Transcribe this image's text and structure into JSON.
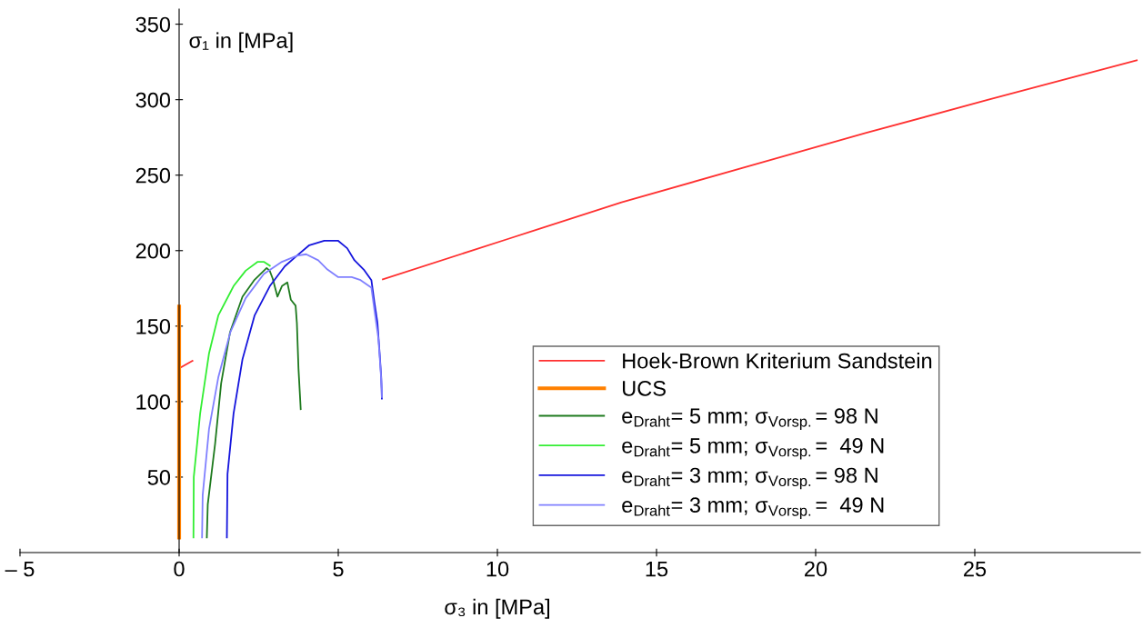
{
  "chart_data": {
    "type": "line",
    "xlabel": "σ₃ in [MPa]",
    "ylabel": "σ₁ in [MPa]",
    "xlim": [
      -5,
      30.2
    ],
    "ylim": [
      0,
      360
    ],
    "xticks": [
      {
        "value": -5,
        "label": "– 5"
      },
      0,
      5,
      10,
      15,
      20,
      25
    ],
    "yticks": [
      50,
      100,
      150,
      200,
      250,
      300,
      350
    ],
    "grid": false,
    "legend": "bottom right",
    "marker": "none",
    "line_style": "solid",
    "series": [
      {
        "name": "Hoek-Brown Kriterium Sandstein",
        "color": "#ff3030",
        "x": [
          0,
          0.42,
          3.0,
          6.4,
          10.37,
          13.9,
          17.74,
          21.59,
          25.43,
          30.09
        ],
        "values": [
          122,
          127,
          null,
          181,
          208,
          232,
          255,
          278,
          300,
          326
        ]
      },
      {
        "name": "UCS",
        "color": "#ff8000",
        "x": [
          0,
          0
        ],
        "values": [
          10,
          163
        ]
      },
      {
        "name": "e$_{Draht}$= 5 mm; σ$_{Vorsp.}$= 98 N",
        "color": "#1e7a1e",
        "x": [
          0.87,
          0.9,
          1.13,
          1.32,
          1.6,
          1.99,
          2.37,
          2.75,
          2.85,
          2.94,
          3.09,
          3.23,
          3.4,
          3.51,
          3.66,
          3.7,
          3.75,
          3.82
        ],
        "values": [
          10,
          32,
          72,
          112,
          146,
          169.5,
          180.7,
          188.5,
          186.5,
          181.5,
          169.5,
          176.5,
          179,
          167.5,
          163.5,
          152,
          122,
          95
        ]
      },
      {
        "name": "e$_{Draht}$= 5 mm; σ$_{Vorsp.}$=  49 N",
        "color": "#33ee33",
        "x": [
          0.45,
          0.46,
          0.66,
          0.94,
          1.23,
          1.71,
          2.09,
          2.47,
          2.66,
          2.85
        ],
        "values": [
          10,
          50,
          92,
          132,
          157,
          176.5,
          186.7,
          192.6,
          192.6,
          190
        ]
      },
      {
        "name": "e$_{Draht}$= 3 mm; σ$_{Vorsp.}$= 98 N",
        "color": "#1515dd",
        "x": [
          1.5,
          1.52,
          1.71,
          1.99,
          2.37,
          2.85,
          3.32,
          3.7,
          4.09,
          4.56,
          4.99,
          5.28,
          5.51,
          5.8,
          6.04,
          6.13,
          6.23,
          6.3,
          6.35,
          6.37
        ],
        "values": [
          10,
          52,
          92,
          128,
          157,
          176.5,
          189.6,
          196.6,
          203.6,
          206.6,
          206.6,
          201.6,
          193.6,
          187.5,
          180.5,
          166.5,
          152.4,
          132,
          116,
          102
        ]
      },
      {
        "name": "e$_{Draht}$= 3 mm; σ$_{Vorsp.}$=  49 N",
        "color": "#8080ff",
        "x": [
          0.72,
          0.74,
          0.94,
          1.23,
          1.61,
          2.09,
          2.66,
          3.23,
          3.7,
          3.99,
          4.37,
          4.66,
          4.99,
          5.42,
          5.7,
          6.04,
          6.14,
          6.26,
          6.32,
          6.37,
          6.37
        ],
        "values": [
          10,
          38,
          82,
          116,
          146,
          168.5,
          184.5,
          192.6,
          196.6,
          197.6,
          193.6,
          187.5,
          182.5,
          182.5,
          180.5,
          175.5,
          160,
          142,
          124,
          108,
          103
        ]
      }
    ]
  }
}
